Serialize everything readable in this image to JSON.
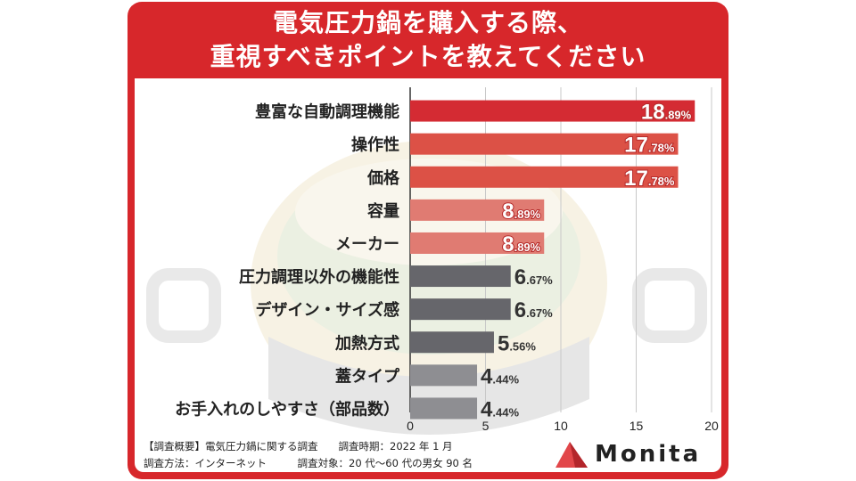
{
  "title": {
    "line1": "電気圧力鍋を購入する際、",
    "line2": "重視すべきポイントを教えてください"
  },
  "colors": {
    "brand_red": "#d7272b",
    "top_bar": "#d42b33",
    "high_bar": "#dc5146",
    "mid_bar": "#e07b72",
    "dark_bar": "#66666b",
    "light_bar": "#8e8e92"
  },
  "chart_data": {
    "type": "bar",
    "orientation": "horizontal",
    "categories": [
      "豊富な自動調理機能",
      "操作性",
      "価格",
      "容量",
      "メーカー",
      "圧力調理以外の機能性",
      "デザイン・サイズ感",
      "加熱方式",
      "蓋タイプ",
      "お手入れのしやすさ（部品数）"
    ],
    "values": [
      18.89,
      17.78,
      17.78,
      8.89,
      8.89,
      6.67,
      6.67,
      5.56,
      4.44,
      4.44
    ],
    "value_labels": [
      {
        "int": "18",
        "dec": ".89%"
      },
      {
        "int": "17",
        "dec": ".78%"
      },
      {
        "int": "17",
        "dec": ".78%"
      },
      {
        "int": "8",
        "dec": ".89%"
      },
      {
        "int": "8",
        "dec": ".89%"
      },
      {
        "int": "6",
        "dec": ".67%"
      },
      {
        "int": "6",
        "dec": ".67%"
      },
      {
        "int": "5",
        "dec": ".56%"
      },
      {
        "int": "4",
        "dec": ".44%"
      },
      {
        "int": "4",
        "dec": ".44%"
      }
    ],
    "bar_colors": [
      "#d42b33",
      "#dc5146",
      "#dc5146",
      "#e07b72",
      "#e07b72",
      "#66666b",
      "#66666b",
      "#66666b",
      "#8e8e92",
      "#8e8e92"
    ],
    "x_ticks": [
      "0",
      "5",
      "10",
      "15",
      "20"
    ],
    "xlim": [
      0,
      20
    ],
    "grid": true,
    "legend": false
  },
  "footer": {
    "line1_a": "【調査概要】電気圧力鍋に関する調査",
    "line1_b": "調査時期：2022 年 1 月",
    "line2_a": "調査方法：インターネット",
    "line2_b": "調査対象：20 代〜60 代の男女 90 名"
  },
  "logo": {
    "text": "Monita",
    "mark_icon": "triangle-logo-icon"
  }
}
